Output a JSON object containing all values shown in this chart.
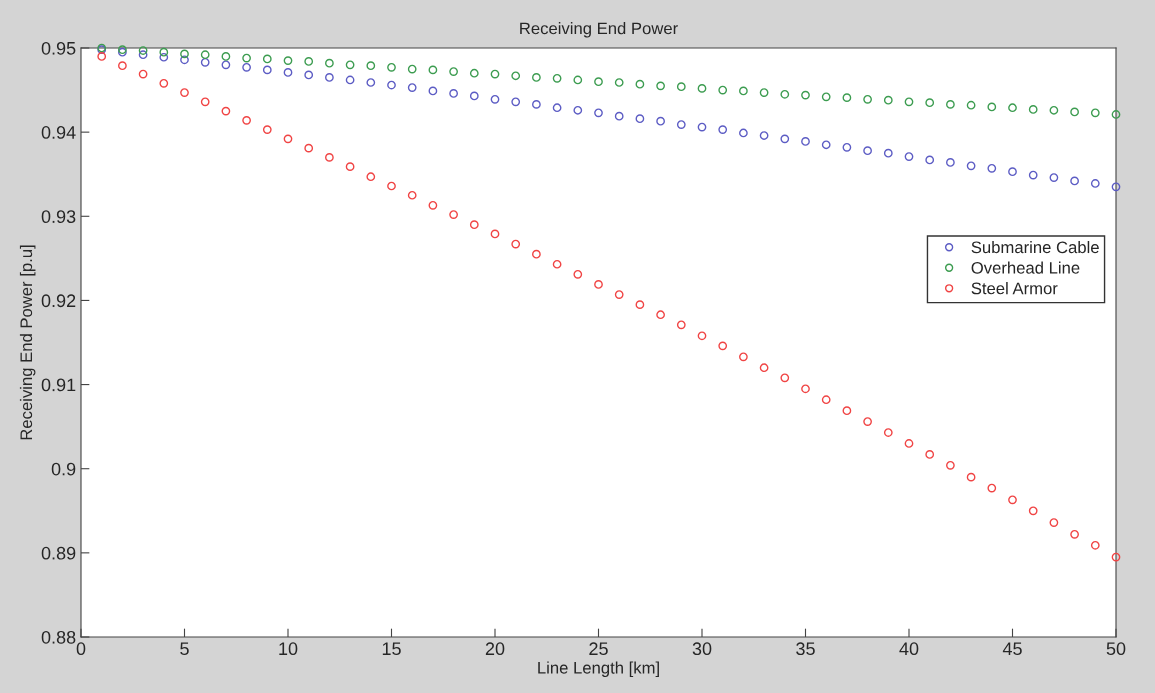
{
  "chart_data": {
    "type": "scatter",
    "title": "Receiving End Power",
    "xlabel": "Line Length [km]",
    "ylabel": "Receiving End Power [p.u]",
    "x": [
      1,
      2,
      3,
      4,
      5,
      6,
      7,
      8,
      9,
      10,
      11,
      12,
      13,
      14,
      15,
      16,
      17,
      18,
      19,
      20,
      21,
      22,
      23,
      24,
      25,
      26,
      27,
      28,
      29,
      30,
      31,
      32,
      33,
      34,
      35,
      36,
      37,
      38,
      39,
      40,
      41,
      42,
      43,
      44,
      45,
      46,
      47,
      48,
      49,
      50
    ],
    "series": [
      {
        "name": "Submarine Cable",
        "color": "#5c5cc4",
        "values": [
          0.9498,
          0.9495,
          0.9492,
          0.9489,
          0.9486,
          0.9483,
          0.948,
          0.9477,
          0.9474,
          0.9471,
          0.9468,
          0.9465,
          0.9462,
          0.9459,
          0.9456,
          0.9453,
          0.9449,
          0.9446,
          0.9443,
          0.9439,
          0.9436,
          0.9433,
          0.9429,
          0.9426,
          0.9423,
          0.9419,
          0.9416,
          0.9413,
          0.9409,
          0.9406,
          0.9403,
          0.9399,
          0.9396,
          0.9392,
          0.9389,
          0.9385,
          0.9382,
          0.9378,
          0.9375,
          0.9371,
          0.9367,
          0.9364,
          0.936,
          0.9357,
          0.9353,
          0.9349,
          0.9346,
          0.9342,
          0.9339,
          0.9335
        ]
      },
      {
        "name": "Overhead Line",
        "color": "#3c9c50",
        "values": [
          0.95,
          0.9498,
          0.9497,
          0.9495,
          0.9493,
          0.9492,
          0.949,
          0.9488,
          0.9487,
          0.9485,
          0.9484,
          0.9482,
          0.948,
          0.9479,
          0.9477,
          0.9475,
          0.9474,
          0.9472,
          0.947,
          0.9469,
          0.9467,
          0.9465,
          0.9464,
          0.9462,
          0.946,
          0.9459,
          0.9457,
          0.9455,
          0.9454,
          0.9452,
          0.945,
          0.9449,
          0.9447,
          0.9445,
          0.9444,
          0.9442,
          0.9441,
          0.9439,
          0.9438,
          0.9436,
          0.9435,
          0.9433,
          0.9432,
          0.943,
          0.9429,
          0.9427,
          0.9426,
          0.9424,
          0.9423,
          0.9421
        ]
      },
      {
        "name": "Steel Armor",
        "color": "#f04444",
        "values": [
          0.949,
          0.9479,
          0.9469,
          0.9458,
          0.9447,
          0.9436,
          0.9425,
          0.9414,
          0.9403,
          0.9392,
          0.9381,
          0.937,
          0.9359,
          0.9347,
          0.9336,
          0.9325,
          0.9313,
          0.9302,
          0.929,
          0.9279,
          0.9267,
          0.9255,
          0.9243,
          0.9231,
          0.9219,
          0.9207,
          0.9195,
          0.9183,
          0.9171,
          0.9158,
          0.9146,
          0.9133,
          0.912,
          0.9108,
          0.9095,
          0.9082,
          0.9069,
          0.9056,
          0.9043,
          0.903,
          0.9017,
          0.9004,
          0.899,
          0.8977,
          0.8963,
          0.895,
          0.8936,
          0.8922,
          0.8909,
          0.8895
        ]
      }
    ],
    "xlim": [
      0,
      50
    ],
    "xticks": [
      0,
      5,
      10,
      15,
      20,
      25,
      30,
      35,
      40,
      45,
      50
    ],
    "ylim": [
      0.88,
      0.95
    ],
    "yticks": [
      0.88,
      0.89,
      0.9,
      0.91,
      0.92,
      0.93,
      0.94,
      0.95
    ],
    "marker": "circle",
    "grid": false,
    "legend": "right"
  }
}
